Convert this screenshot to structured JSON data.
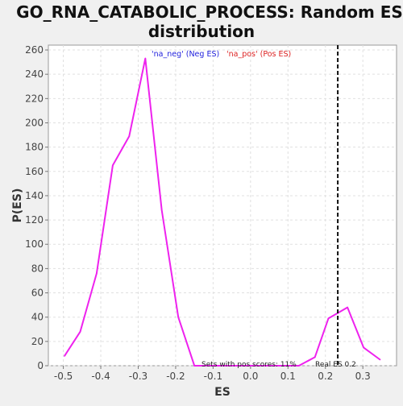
{
  "chart_data": {
    "type": "line",
    "title_lines": [
      "GO_RNA_CATABOLIC_PROCESS: Random ES",
      "distribution"
    ],
    "xlabel": "ES",
    "ylabel": "P(ES)",
    "xlim": [
      -0.54,
      0.39
    ],
    "ylim": [
      0,
      264
    ],
    "x_ticks": [
      -0.5,
      -0.4,
      -0.3,
      -0.2,
      -0.1,
      0.0,
      0.1,
      0.2,
      0.3
    ],
    "x_tick_labels": [
      "-0.5",
      "-0.4",
      "-0.3",
      "-0.2",
      "-0.1",
      "0.0",
      "0.1",
      "0.2",
      "0.3"
    ],
    "y_ticks": [
      0,
      20,
      40,
      60,
      80,
      100,
      120,
      140,
      160,
      180,
      200,
      220,
      240,
      260
    ],
    "y_tick_labels": [
      "0",
      "20",
      "40",
      "60",
      "80",
      "100",
      "120",
      "140",
      "160",
      "180",
      "200",
      "220",
      "240",
      "260"
    ],
    "grid": true,
    "legend": {
      "placement": "top-center",
      "entries": [
        {
          "label": "'na_neg' (Neg ES)",
          "color": "#2222dd"
        },
        {
          "label": "'na_pos' (Pos ES)",
          "color": "#dd2222"
        }
      ]
    },
    "series": [
      {
        "color": "#ee22ee",
        "x": [
          -0.497,
          -0.455,
          -0.411,
          -0.368,
          -0.324,
          -0.281,
          -0.237,
          -0.193,
          -0.15,
          -0.106,
          0.0,
          0.129,
          0.172,
          0.208,
          0.259,
          0.302,
          0.346
        ],
        "y": [
          8,
          28,
          76,
          165,
          189,
          253,
          128,
          40,
          0,
          0,
          0,
          0,
          7,
          39,
          48,
          15,
          5
        ]
      }
    ],
    "real_es": {
      "x": 0.233,
      "label": "Real ES 0.2"
    },
    "annotation": "Sets with pos scores: 11%"
  }
}
